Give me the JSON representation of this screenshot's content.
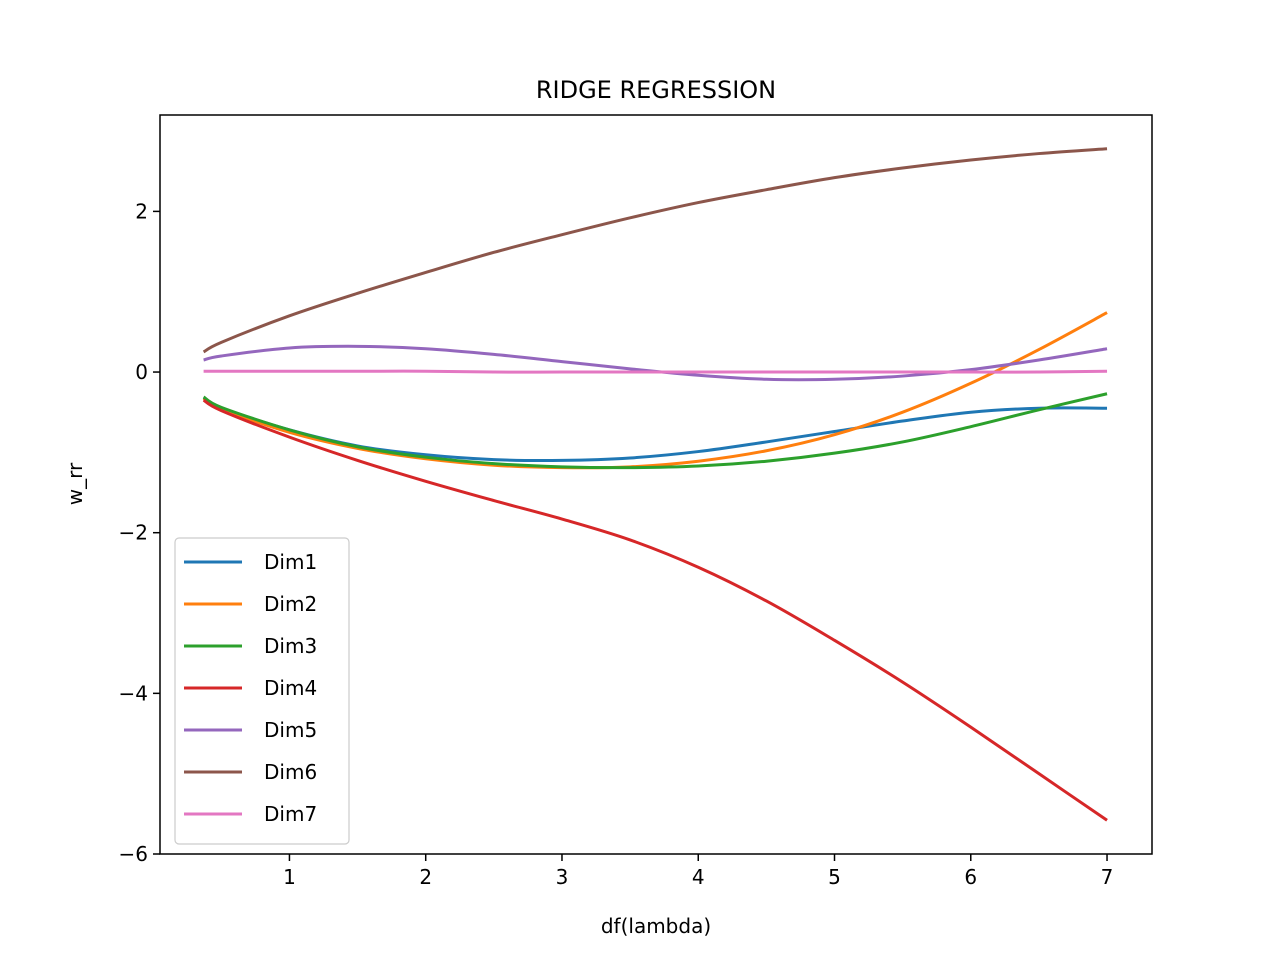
{
  "chart_data": {
    "type": "line",
    "title": "RIDGE REGRESSION",
    "xlabel": "df(lambda)",
    "ylabel": "w_rr",
    "xlim": [
      0.05,
      7.33
    ],
    "ylim": [
      -6,
      3.2
    ],
    "xticks": [
      1,
      2,
      3,
      4,
      5,
      6,
      7
    ],
    "yticks": [
      -6,
      -4,
      -2,
      0,
      2
    ],
    "grid": false,
    "legend_position": "lower-left",
    "x": [
      0.37,
      0.5,
      1.0,
      1.5,
      2.0,
      2.5,
      3.0,
      3.5,
      4.0,
      4.5,
      5.0,
      5.5,
      6.0,
      6.5,
      7.0
    ],
    "series": [
      {
        "name": "Dim1",
        "color": "#1f77b4",
        "values": [
          -0.32,
          -0.45,
          -0.72,
          -0.92,
          -1.03,
          -1.09,
          -1.1,
          -1.07,
          -0.99,
          -0.87,
          -0.74,
          -0.61,
          -0.5,
          -0.45,
          -0.45
        ]
      },
      {
        "name": "Dim2",
        "color": "#ff7f0e",
        "values": [
          -0.33,
          -0.46,
          -0.75,
          -0.95,
          -1.08,
          -1.16,
          -1.19,
          -1.18,
          -1.11,
          -0.98,
          -0.78,
          -0.5,
          -0.14,
          0.28,
          0.74
        ]
      },
      {
        "name": "Dim3",
        "color": "#2ca02c",
        "values": [
          -0.31,
          -0.44,
          -0.72,
          -0.93,
          -1.06,
          -1.14,
          -1.18,
          -1.19,
          -1.17,
          -1.11,
          -1.01,
          -0.87,
          -0.68,
          -0.47,
          -0.27
        ]
      },
      {
        "name": "Dim4",
        "color": "#d62728",
        "values": [
          -0.35,
          -0.48,
          -0.81,
          -1.1,
          -1.36,
          -1.6,
          -1.83,
          -2.09,
          -2.43,
          -2.85,
          -3.34,
          -3.86,
          -4.42,
          -5.0,
          -5.58
        ]
      },
      {
        "name": "Dim5",
        "color": "#9467bd",
        "values": [
          0.15,
          0.2,
          0.3,
          0.32,
          0.29,
          0.22,
          0.13,
          0.04,
          -0.04,
          -0.09,
          -0.09,
          -0.05,
          0.03,
          0.15,
          0.29
        ]
      },
      {
        "name": "Dim6",
        "color": "#8c564b",
        "values": [
          0.25,
          0.37,
          0.7,
          0.98,
          1.24,
          1.49,
          1.71,
          1.92,
          2.11,
          2.27,
          2.42,
          2.54,
          2.64,
          2.72,
          2.78
        ]
      },
      {
        "name": "Dim7",
        "color": "#e377c2",
        "values": [
          0.01,
          0.01,
          0.01,
          0.01,
          0.01,
          0.0,
          0.0,
          0.0,
          0.0,
          0.0,
          0.0,
          0.0,
          0.0,
          0.0,
          0.01
        ]
      }
    ]
  }
}
